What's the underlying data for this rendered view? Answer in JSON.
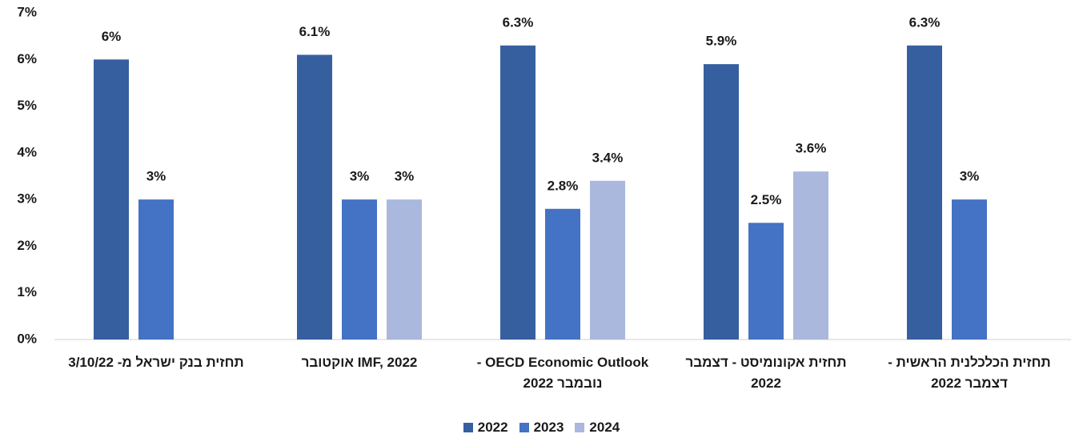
{
  "chart_data": {
    "type": "bar",
    "categories": [
      "תחזית בנק ישראל מ- 3/10/22",
      "IMF, 2022 אוקטובר",
      "OECD Economic Outlook - נובמבר 2022",
      "תחזית אקונומיסט - דצמבר 2022",
      "תחזית הכלכלנית הראשית - דצמבר 2022"
    ],
    "series": [
      {
        "name": "2022",
        "color": "#365fa0",
        "values": [
          6,
          6.1,
          6.3,
          5.9,
          6.3
        ],
        "value_labels": [
          "6%",
          "6.1%",
          "6.3%",
          "5.9%",
          "6.3%"
        ]
      },
      {
        "name": "2023",
        "color": "#4472c4",
        "values": [
          3,
          3,
          2.8,
          2.5,
          3
        ],
        "value_labels": [
          "3%",
          "3%",
          "2.8%",
          "2.5%",
          "3%"
        ]
      },
      {
        "name": "2024",
        "color": "#a9b8dc",
        "values": [
          null,
          3,
          3.4,
          3.6,
          null
        ],
        "value_labels": [
          null,
          "3%",
          "3.4%",
          "3.6%",
          null
        ]
      }
    ],
    "ylim": [
      0,
      7
    ],
    "yticks": [
      {
        "value": 0,
        "label": "0%"
      },
      {
        "value": 1,
        "label": "1%"
      },
      {
        "value": 2,
        "label": "2%"
      },
      {
        "value": 3,
        "label": "3%"
      },
      {
        "value": 4,
        "label": "4%"
      },
      {
        "value": 5,
        "label": "5%"
      },
      {
        "value": 6,
        "label": "6%"
      },
      {
        "value": 7,
        "label": "7%"
      }
    ],
    "grid": false,
    "legend": "bottom"
  }
}
